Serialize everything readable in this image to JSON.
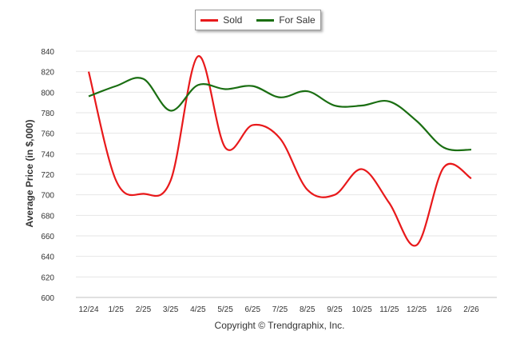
{
  "chart_data": {
    "type": "line",
    "title": "",
    "xlabel": "",
    "ylabel": "Average Price (in $,000)",
    "categories": [
      "12/24",
      "1/25",
      "2/25",
      "3/25",
      "4/25",
      "5/25",
      "6/25",
      "7/25",
      "8/25",
      "9/25",
      "10/25",
      "11/25",
      "12/25",
      "1/26",
      "2/26"
    ],
    "ylim": [
      600,
      840
    ],
    "yticks": [
      600,
      620,
      640,
      660,
      680,
      700,
      720,
      740,
      760,
      780,
      800,
      820,
      840
    ],
    "grid": true,
    "legend_position": "top-center",
    "series": [
      {
        "name": "Sold",
        "color": "#e8191b",
        "values": [
          820,
          714,
          701,
          714,
          835,
          746,
          768,
          755,
          705,
          700,
          725,
          692,
          651,
          727,
          716
        ]
      },
      {
        "name": "For Sale",
        "color": "#1a6e12",
        "values": [
          796,
          806,
          813,
          782,
          807,
          803,
          806,
          795,
          801,
          787,
          787,
          791,
          772,
          746,
          744
        ]
      }
    ]
  },
  "footer": "Copyright © Trendgraphix, Inc."
}
